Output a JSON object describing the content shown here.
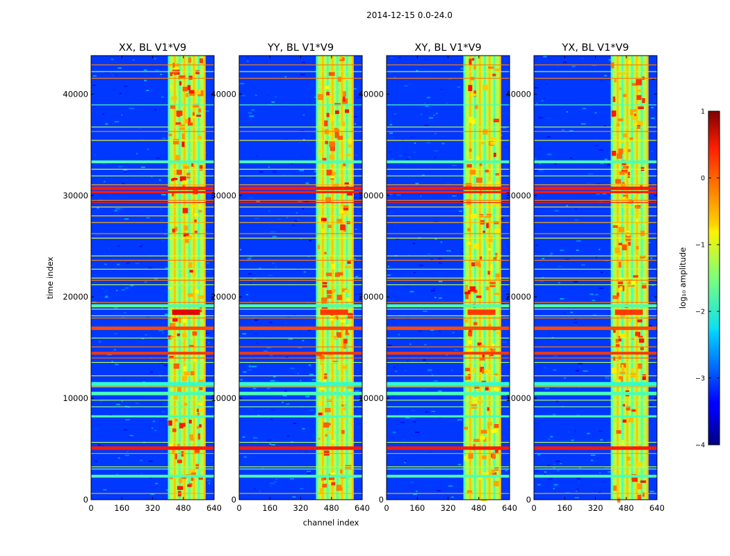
{
  "figure": {
    "suptitle": "2014-12-15 0.0-24.0",
    "xlabel": "channel index",
    "ylabel": "time index"
  },
  "colorbar": {
    "label": "log₁₀ amplitude",
    "ticks": [
      1,
      0,
      -1,
      -2,
      -3,
      -4
    ],
    "tick_labels": [
      "1",
      "0",
      "−1",
      "−2",
      "−3",
      "−4"
    ]
  },
  "chart_data": [
    {
      "type": "heatmap",
      "title": "XX, BL V1*V9",
      "xlabel": "",
      "ylabel": "time index",
      "xlim": [
        0,
        640
      ],
      "ylim": [
        0,
        43800
      ],
      "xticks": [
        0,
        160,
        320,
        480,
        640
      ],
      "yticks": [
        0,
        10000,
        20000,
        30000,
        40000
      ],
      "colorscale": "jet",
      "vmin": -4,
      "vmax": 1
    },
    {
      "type": "heatmap",
      "title": "YY, BL V1*V9",
      "xlabel": "channel index",
      "ylabel": "",
      "xlim": [
        0,
        640
      ],
      "ylim": [
        0,
        43800
      ],
      "xticks": [
        0,
        160,
        320,
        480,
        640
      ],
      "yticks": [
        0,
        10000,
        20000,
        30000,
        40000
      ],
      "colorscale": "jet",
      "vmin": -4,
      "vmax": 1
    },
    {
      "type": "heatmap",
      "title": "XY, BL V1*V9",
      "xlabel": "",
      "ylabel": "",
      "xlim": [
        0,
        640
      ],
      "ylim": [
        0,
        43800
      ],
      "xticks": [
        0,
        160,
        320,
        480,
        640
      ],
      "yticks": [
        0,
        10000,
        20000,
        30000,
        40000
      ],
      "colorscale": "jet",
      "vmin": -4,
      "vmax": 1
    },
    {
      "type": "heatmap",
      "title": "YX, BL V1*V9",
      "xlabel": "",
      "ylabel": "",
      "xlim": [
        0,
        640
      ],
      "ylim": [
        0,
        43800
      ],
      "xticks": [
        0,
        160,
        320,
        480,
        640
      ],
      "yticks": [
        0,
        10000,
        20000,
        30000,
        40000
      ],
      "colorscale": "jet",
      "vmin": -4,
      "vmax": 1
    }
  ]
}
